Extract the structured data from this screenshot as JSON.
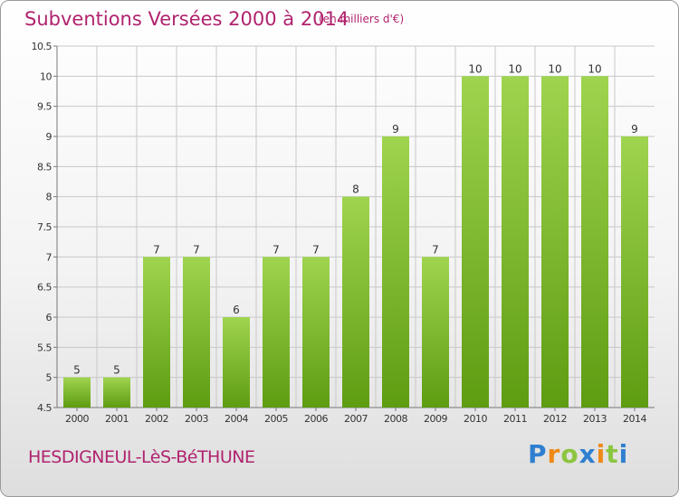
{
  "header": {
    "title": "Subventions Versées 2000 à 2014",
    "subtitle": "(en milliers d'€)"
  },
  "footer": {
    "commune": "HESDIGNEUL-LèS-BéTHUNE",
    "logo_text": "Proxiti",
    "logo_letters": [
      {
        "char": "P",
        "color": "#2f7fd0"
      },
      {
        "char": "r",
        "color": "#ef8a18"
      },
      {
        "char": "o",
        "color": "#8cc640"
      },
      {
        "char": "x",
        "color": "#2f7fd0"
      },
      {
        "char": "i",
        "color": "#ef8a18"
      },
      {
        "char": "t",
        "color": "#8cc640"
      },
      {
        "char": "i",
        "color": "#2f7fd0"
      }
    ]
  },
  "colors": {
    "title": "#b0236e",
    "bar_top": "#9fd44f",
    "bar_bottom": "#5e9c12",
    "grid": "#c8c8c8"
  },
  "chart_data": {
    "type": "bar",
    "title": "Subventions Versées 2000 à 2014",
    "subtitle": "(en milliers d'€)",
    "xlabel": "",
    "ylabel": "",
    "categories": [
      "2000",
      "2001",
      "2002",
      "2003",
      "2004",
      "2005",
      "2006",
      "2007",
      "2008",
      "2009",
      "2010",
      "2011",
      "2012",
      "2013",
      "2014"
    ],
    "values": [
      5,
      5,
      7,
      7,
      6,
      7,
      7,
      8,
      9,
      7,
      10,
      10,
      10,
      10,
      9
    ],
    "ylim": [
      4.5,
      10.5
    ],
    "yticks": [
      "4.5",
      "5",
      "5.5",
      "6",
      "6.5",
      "7",
      "7.5",
      "8",
      "8.5",
      "9",
      "9.5",
      "10",
      "10.5"
    ],
    "grid": true
  }
}
